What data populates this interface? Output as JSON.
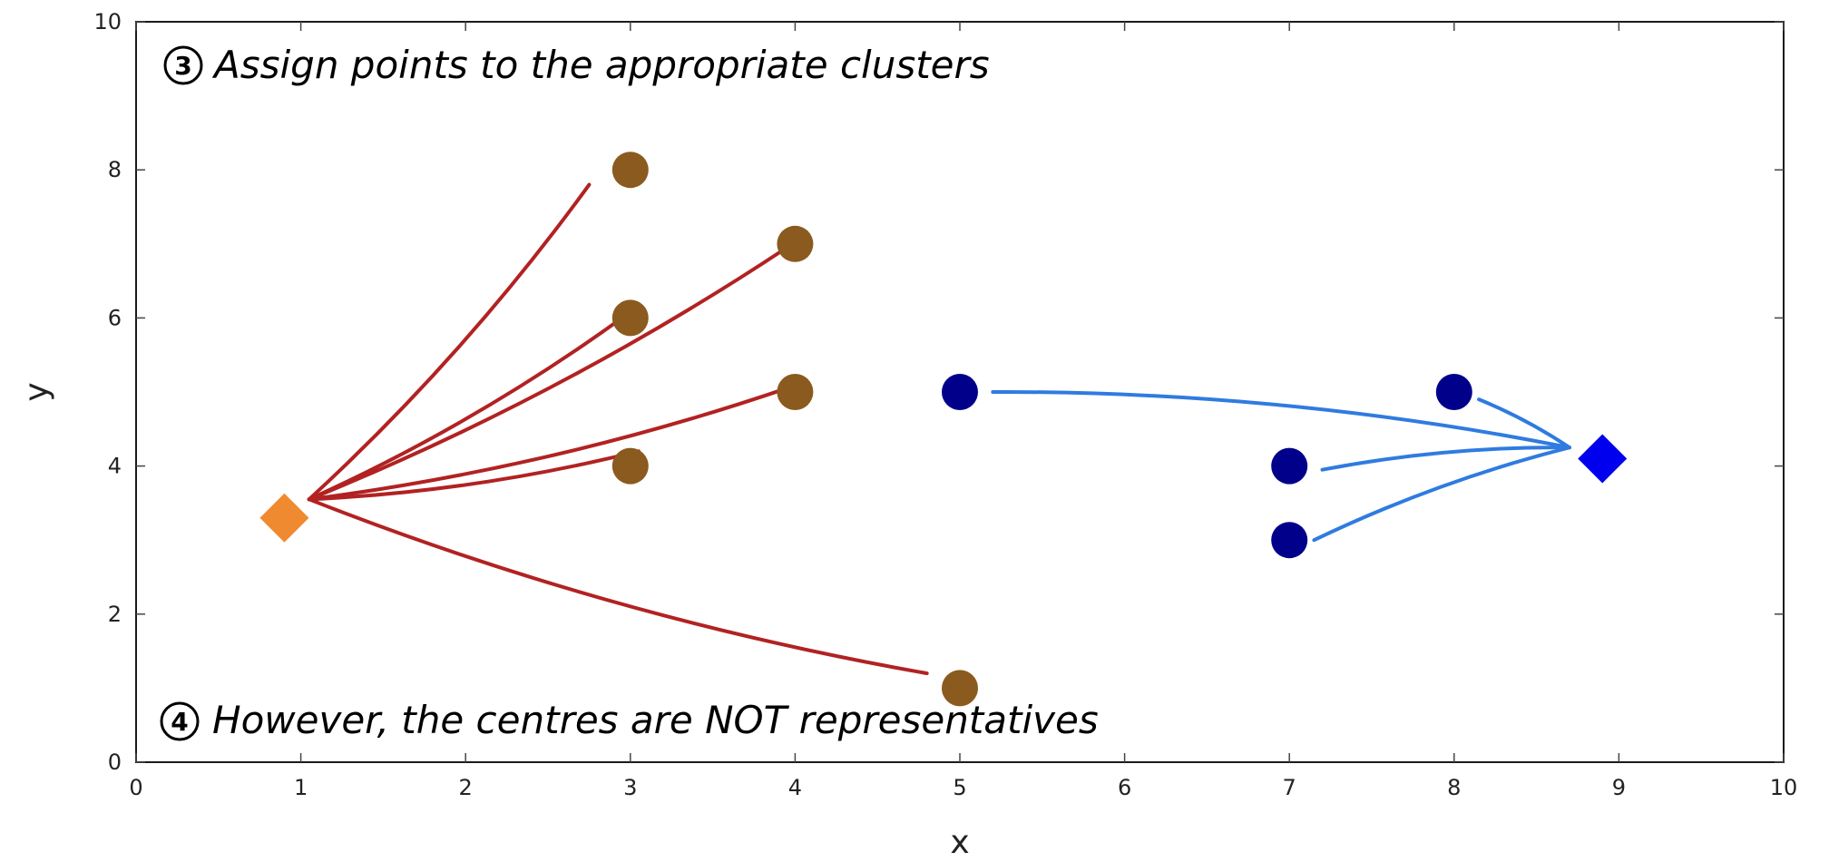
{
  "chart_data": {
    "type": "scatter",
    "xlabel": "x",
    "ylabel": "y",
    "xlim": [
      0,
      10
    ],
    "ylim": [
      0,
      10
    ],
    "xticks": [
      0,
      1,
      2,
      3,
      4,
      5,
      6,
      7,
      8,
      9,
      10
    ],
    "yticks": [
      0,
      2,
      4,
      6,
      8,
      10
    ],
    "grid": false,
    "series": [
      {
        "marker": "circle",
        "color": "#8B5A1E",
        "points": [
          {
            "x": 3,
            "y": 8
          },
          {
            "x": 4,
            "y": 7
          },
          {
            "x": 3,
            "y": 6
          },
          {
            "x": 4,
            "y": 5
          },
          {
            "x": 3,
            "y": 4
          },
          {
            "x": 5,
            "y": 1
          }
        ]
      },
      {
        "marker": "circle",
        "color": "#00008B",
        "points": [
          {
            "x": 5,
            "y": 5
          },
          {
            "x": 8,
            "y": 5
          },
          {
            "x": 7,
            "y": 4
          },
          {
            "x": 7,
            "y": 3
          }
        ]
      },
      {
        "marker": "diamond",
        "color": "#F08A30",
        "points": [
          {
            "x": 0.9,
            "y": 3.3
          }
        ]
      },
      {
        "marker": "diamond",
        "color": "#0000EE",
        "points": [
          {
            "x": 8.9,
            "y": 4.1
          }
        ]
      }
    ],
    "assignments": [
      {
        "color": "#B22222",
        "from": {
          "x": 1.05,
          "y": 3.55
        },
        "to": [
          {
            "x": 2.75,
            "y": 7.8
          },
          {
            "x": 3.95,
            "y": 6.95
          },
          {
            "x": 2.95,
            "y": 6.0
          },
          {
            "x": 3.95,
            "y": 5.05
          },
          {
            "x": 3.05,
            "y": 4.2
          },
          {
            "x": 4.8,
            "y": 1.2
          }
        ]
      },
      {
        "color": "#2F7BE0",
        "from": {
          "x": 8.7,
          "y": 4.25
        },
        "to": [
          {
            "x": 5.2,
            "y": 5.0
          },
          {
            "x": 8.15,
            "y": 4.9
          },
          {
            "x": 7.2,
            "y": 3.95
          },
          {
            "x": 7.15,
            "y": 3.0
          }
        ]
      }
    ],
    "annotations": [
      {
        "number": "3",
        "text": "Assign points to the appropriate clusters"
      },
      {
        "number": "4",
        "text": "However, the centres are NOT representatives"
      }
    ]
  }
}
